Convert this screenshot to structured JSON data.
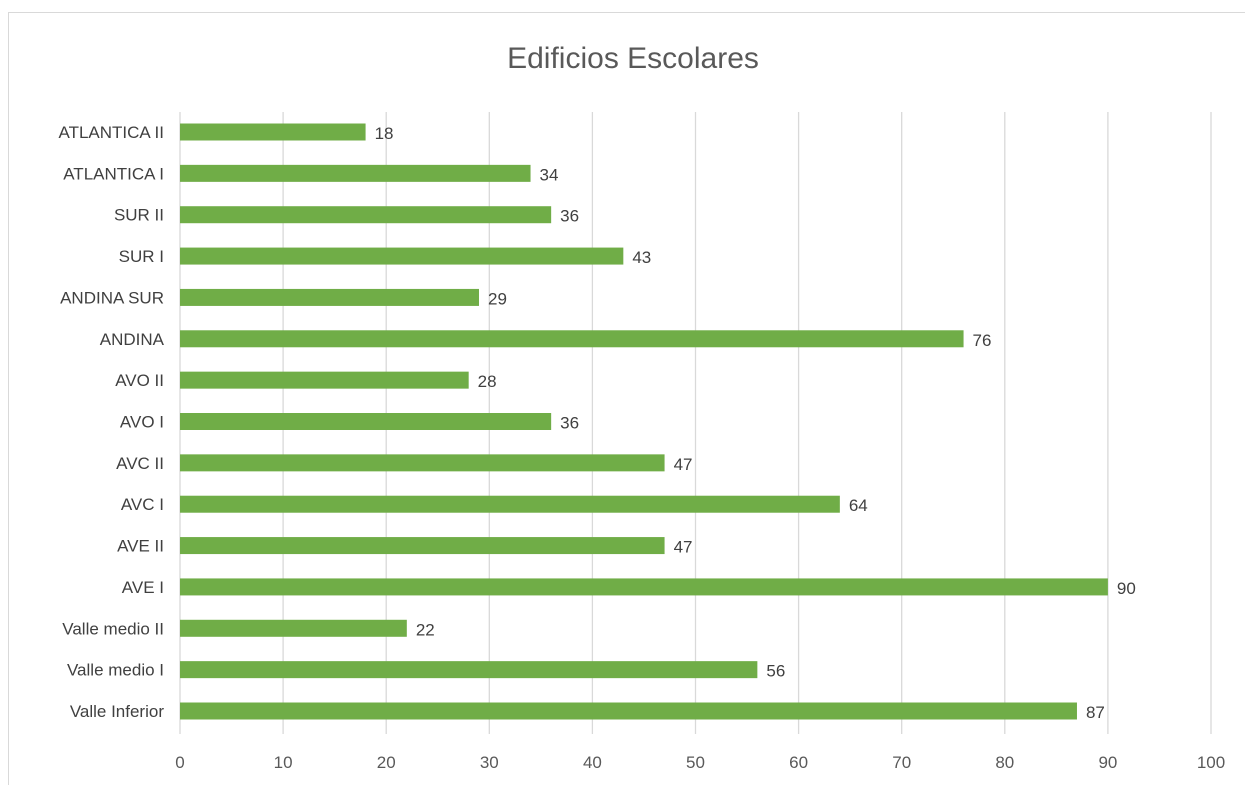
{
  "chart_data": {
    "type": "bar",
    "orientation": "horizontal",
    "title": "Edificios Escolares",
    "categories": [
      "ATLANTICA II",
      "ATLANTICA I",
      "SUR II",
      "SUR I",
      "ANDINA SUR",
      "ANDINA",
      "AVO II",
      "AVO I",
      "AVC II",
      "AVC I",
      "AVE II",
      "AVE I",
      "Valle medio II",
      "Valle medio I",
      "Valle Inferior"
    ],
    "values": [
      18,
      34,
      36,
      43,
      29,
      76,
      28,
      36,
      47,
      64,
      47,
      90,
      22,
      56,
      87
    ],
    "xlim": [
      0,
      100
    ],
    "xticks": [
      "0",
      "10",
      "20",
      "30",
      "40",
      "50",
      "60",
      "70",
      "80",
      "90",
      "100"
    ],
    "grid": true,
    "legend": "none",
    "bar_color": "#70ad47",
    "grid_color": "#d9d9d9"
  }
}
